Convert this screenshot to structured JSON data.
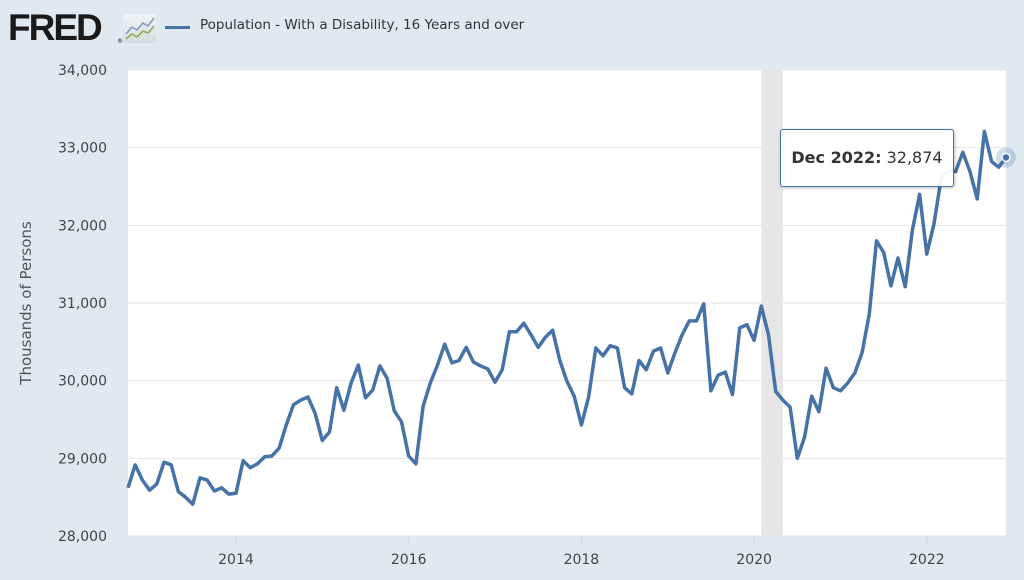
{
  "header": {
    "logo_text": "FRED",
    "logo_reg": "®",
    "logo_icon": "chart-line-icon"
  },
  "colors": {
    "series": "#4572a7",
    "background": "#e1e9f0",
    "plot_background": "#ffffff",
    "recession_band": "#e6e6e6",
    "grid": "#e6e6e6"
  },
  "tooltip": {
    "date": "Dec 2022:",
    "value": "32,874"
  },
  "chart_data": {
    "type": "line",
    "title": "",
    "xlabel": "",
    "ylabel": "Thousands of Persons",
    "legend": {
      "entries": [
        "Population - With a Disability, 16 Years and over"
      ],
      "placement": "top-left"
    },
    "grid": true,
    "ylim": [
      28000,
      34000
    ],
    "yticks": [
      28000,
      29000,
      30000,
      31000,
      32000,
      33000,
      34000
    ],
    "ytick_labels": [
      "28,000",
      "29,000",
      "30,000",
      "31,000",
      "32,000",
      "33,000",
      "34,000"
    ],
    "xlim": [
      "2012-09",
      "2022-12"
    ],
    "xticks": [
      "2014",
      "2016",
      "2018",
      "2020",
      "2022"
    ],
    "recessions": [
      {
        "start": "2020-02",
        "end": "2020-04"
      }
    ],
    "highlight_point": {
      "date": "2022-12",
      "value": 32874
    },
    "series": [
      {
        "name": "Population - With a Disability, 16 Years and over",
        "start": "2012-10",
        "frequency": "monthly",
        "values": [
          28620,
          28915,
          28720,
          28590,
          28670,
          28950,
          28915,
          28570,
          28500,
          28410,
          28750,
          28720,
          28580,
          28620,
          28540,
          28550,
          28970,
          28880,
          28930,
          29020,
          29030,
          29130,
          29430,
          29690,
          29750,
          29790,
          29580,
          29230,
          29340,
          29910,
          29620,
          29970,
          30200,
          29780,
          29880,
          30190,
          30030,
          29610,
          29470,
          29030,
          28930,
          29670,
          29970,
          30200,
          30470,
          30230,
          30260,
          30430,
          30240,
          30190,
          30150,
          29980,
          30140,
          30630,
          30630,
          30740,
          30590,
          30430,
          30560,
          30650,
          30260,
          29990,
          29800,
          29430,
          29790,
          30420,
          30320,
          30450,
          30420,
          29910,
          29830,
          30260,
          30140,
          30380,
          30420,
          30100,
          30360,
          30590,
          30770,
          30770,
          30990,
          29870,
          30070,
          30110,
          29820,
          30680,
          30720,
          30520,
          30960,
          30590,
          29860,
          29750,
          29660,
          29000,
          29270,
          29800,
          29600,
          30160,
          29910,
          29870,
          29970,
          30100,
          30360,
          30860,
          31800,
          31650,
          31220,
          31580,
          31210,
          31940,
          32400,
          31630,
          32020,
          32610,
          32710,
          32690,
          32940,
          32690,
          32340,
          33210,
          32820,
          32750,
          32874
        ]
      }
    ]
  }
}
